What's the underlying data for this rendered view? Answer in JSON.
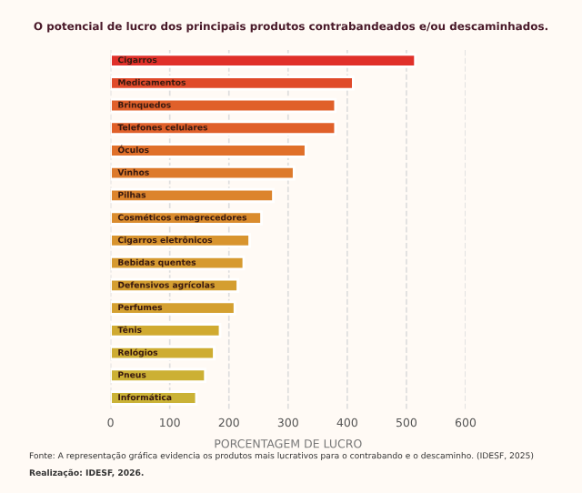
{
  "chart_data": {
    "type": "bar",
    "orientation": "horizontal",
    "title": "O potencial de lucro dos principais produtos contrabandeados e/ou descaminhados.",
    "xlabel": "PORCENTAGEM DE LUCRO",
    "categories": [
      "Cigarros",
      "Medicamentos",
      "Brinquedos",
      "Telefones celulares",
      "Óculos",
      "Vinhos",
      "Pilhas",
      "Cosméticos emagrecedores",
      "Cigarros eletrônicos",
      "Bebidas quentes",
      "Defensivos agrícolas",
      "Perfumes",
      "Tênis",
      "Relógios",
      "Pneus",
      "Informática"
    ],
    "values": [
      515,
      410,
      380,
      380,
      330,
      310,
      275,
      255,
      235,
      225,
      215,
      210,
      185,
      175,
      160,
      145
    ],
    "colors": [
      "#e0302a",
      "#e04a2a",
      "#e0602a",
      "#e0602a",
      "#e0702a",
      "#dd7a2c",
      "#dc842c",
      "#da8c2e",
      "#d8942e",
      "#d69a30",
      "#d49e30",
      "#d4a030",
      "#d0aa30",
      "#cead32",
      "#ccb034",
      "#cab236"
    ],
    "xlim": [
      0,
      600
    ],
    "xticks": [
      0,
      100,
      200,
      300,
      400,
      500,
      600
    ],
    "grid": "x",
    "annotations": [
      "Fonte: A representação gráfica evidencia os produtos mais lucrativos para o contrabando e o descaminho. (IDESF, 2025)",
      "Realização: IDESF, 2026."
    ]
  }
}
